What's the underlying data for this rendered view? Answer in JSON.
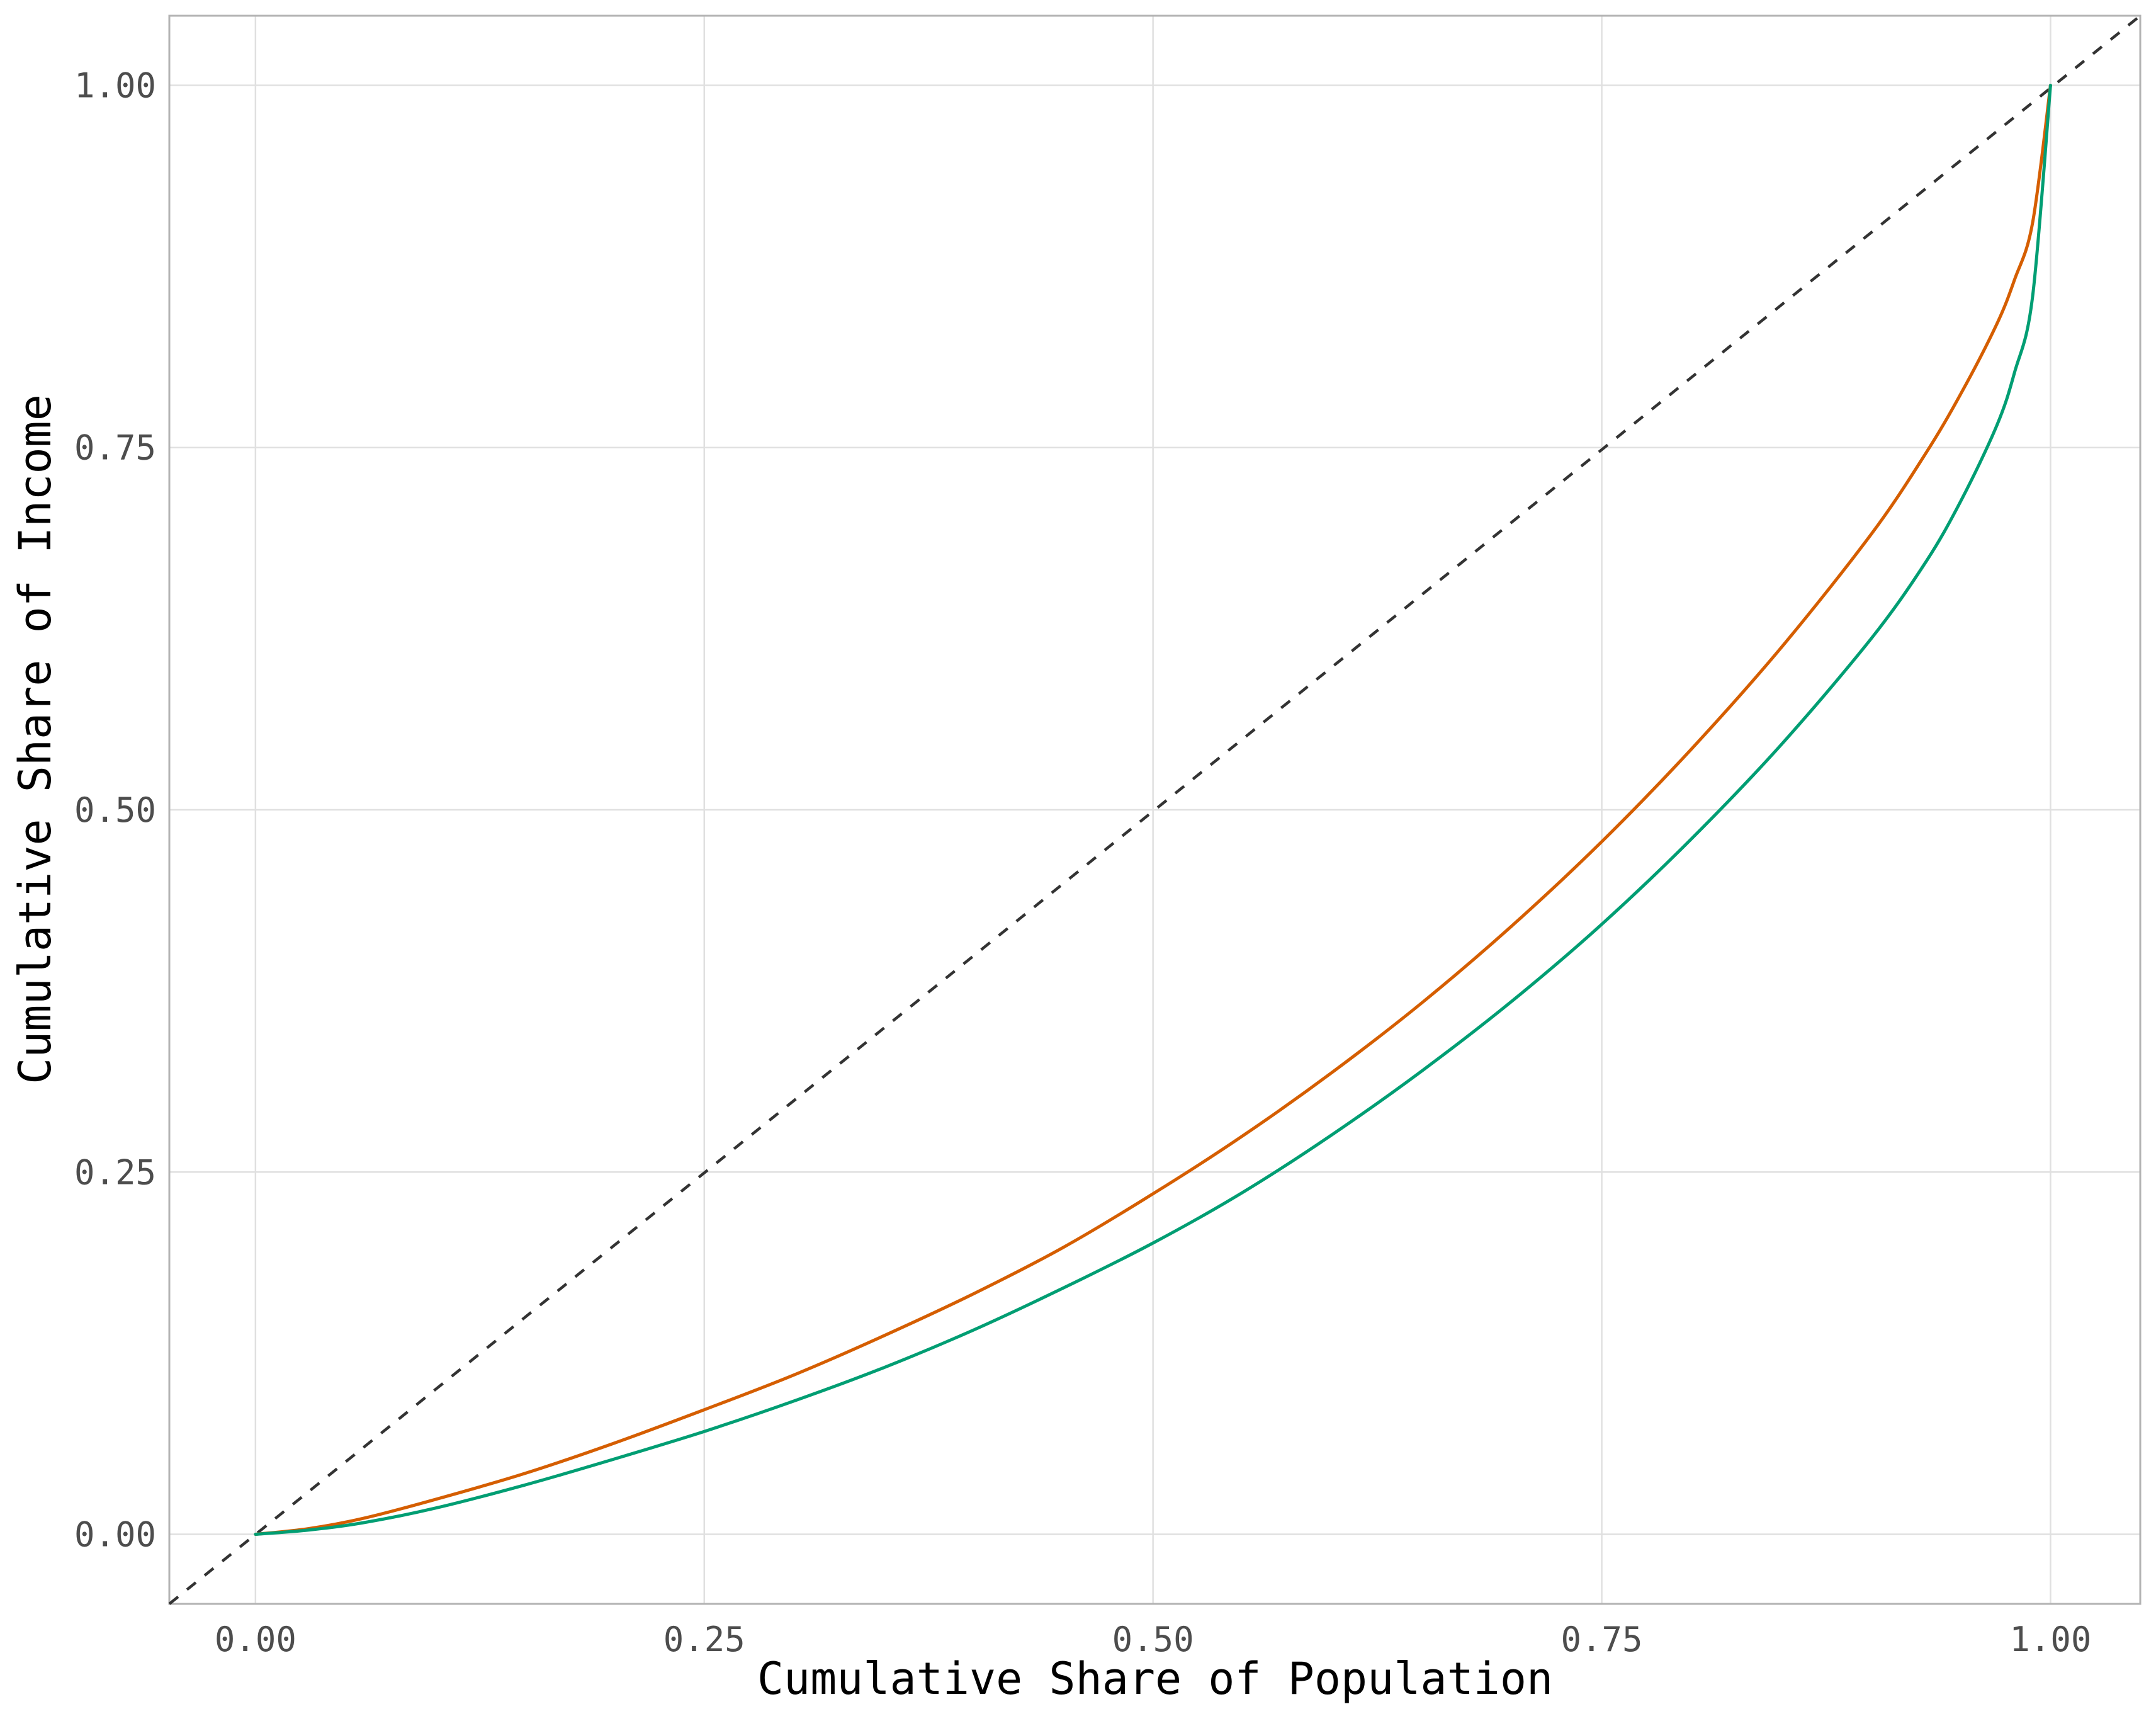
{
  "chart_data": {
    "type": "line",
    "title": "",
    "xlabel": "Cumulative Share of Population",
    "ylabel": "Cumulative Share of Income",
    "xlim": [
      -0.048,
      1.05
    ],
    "ylim": [
      -0.048,
      1.048
    ],
    "x_ticks": [
      0,
      0.25,
      0.5,
      0.75,
      1
    ],
    "x_tick_labels": [
      "0.00",
      "0.25",
      "0.50",
      "0.75",
      "1.00"
    ],
    "y_ticks": [
      0,
      0.25,
      0.5,
      0.75,
      1
    ],
    "y_tick_labels": [
      "0.00",
      "0.25",
      "0.50",
      "0.75",
      "1.00"
    ],
    "grid": true,
    "legend": "none",
    "reference_line": {
      "name": "",
      "style": "dashed",
      "color": "#333333",
      "points": [
        [
          -0.048,
          -0.048
        ],
        [
          1.05,
          1.048
        ]
      ]
    },
    "series": [
      {
        "color": "#D55E00",
        "x": [
          0,
          0.03,
          0.06,
          0.1,
          0.15,
          0.2,
          0.25,
          0.3,
          0.35,
          0.4,
          0.45,
          0.5,
          0.55,
          0.6,
          0.65,
          0.7,
          0.75,
          0.8,
          0.85,
          0.9,
          0.93,
          0.95,
          0.97,
          0.98,
          0.99,
          1.0
        ],
        "y": [
          0,
          0.004,
          0.011,
          0.024,
          0.042,
          0.063,
          0.086,
          0.11,
          0.137,
          0.166,
          0.198,
          0.235,
          0.275,
          0.319,
          0.367,
          0.42,
          0.478,
          0.542,
          0.612,
          0.69,
          0.745,
          0.787,
          0.835,
          0.866,
          0.905,
          1.0
        ]
      },
      {
        "color": "#009E73",
        "x": [
          0,
          0.03,
          0.06,
          0.1,
          0.15,
          0.2,
          0.25,
          0.3,
          0.35,
          0.4,
          0.45,
          0.5,
          0.55,
          0.6,
          0.65,
          0.7,
          0.75,
          0.8,
          0.85,
          0.9,
          0.93,
          0.95,
          0.97,
          0.98,
          0.99,
          1.0
        ],
        "y": [
          0,
          0.003,
          0.008,
          0.018,
          0.034,
          0.052,
          0.071,
          0.092,
          0.115,
          0.141,
          0.17,
          0.201,
          0.236,
          0.276,
          0.32,
          0.368,
          0.421,
          0.48,
          0.545,
          0.618,
          0.67,
          0.713,
          0.765,
          0.802,
          0.854,
          1.0
        ]
      }
    ]
  }
}
